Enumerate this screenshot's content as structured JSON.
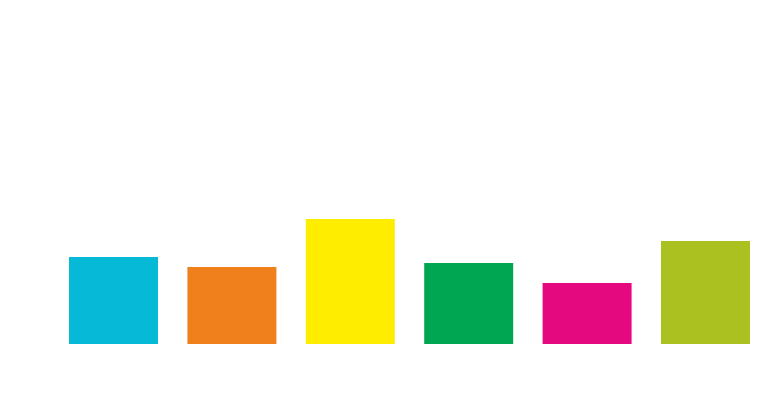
{
  "chart_data": {
    "type": "bar",
    "title": "",
    "xlabel": "",
    "ylabel": "",
    "categories": [
      "",
      "",
      "",
      "",
      "",
      ""
    ],
    "values": [
      87,
      77,
      125,
      81,
      61,
      103
    ],
    "colors": [
      "#06b9d6",
      "#ef801b",
      "#ffed00",
      "#00a651",
      "#e4097f",
      "#aac120"
    ],
    "ylim": [
      0,
      300
    ],
    "grid": false,
    "legend": "none"
  }
}
